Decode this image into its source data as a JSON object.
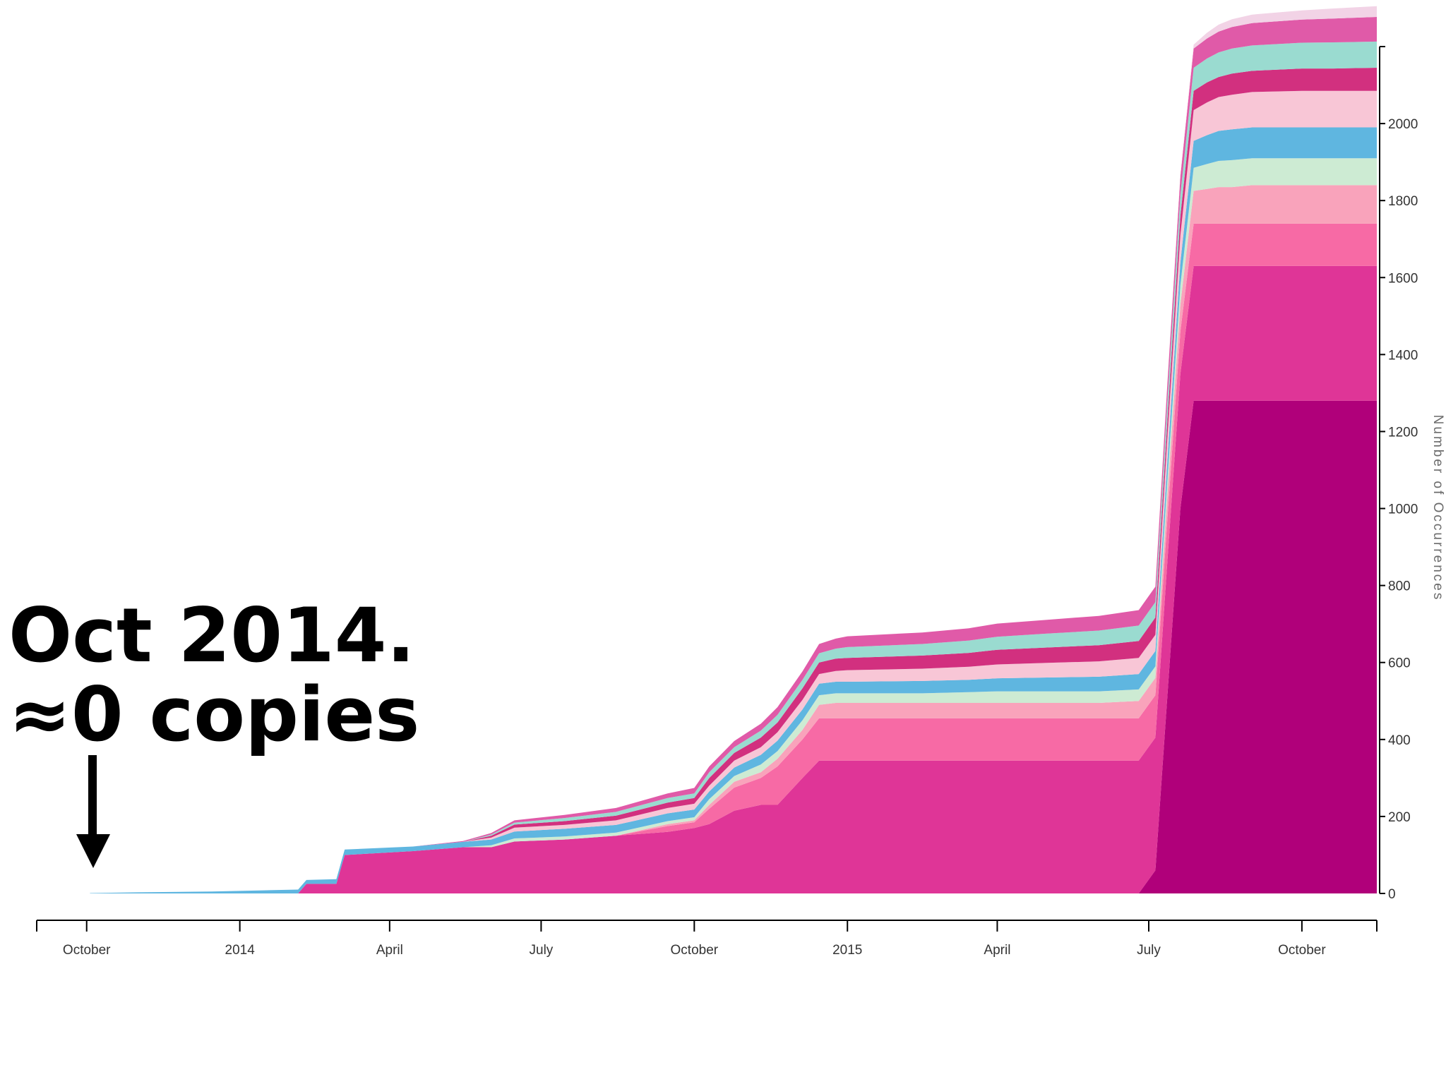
{
  "annotation": {
    "line1": "Oct 2014.",
    "line2": "≈0 copies"
  },
  "chart_data": {
    "type": "area",
    "stacked": true,
    "ylabel": "Number of Occurrences",
    "xlabel": "",
    "ylim": [
      0,
      2200
    ],
    "yticks": [
      0,
      200,
      400,
      600,
      800,
      1000,
      1200,
      1400,
      1600,
      1800,
      2000
    ],
    "xlim": [
      "2013-09-01",
      "2015-11-15"
    ],
    "xticks": [
      {
        "label": "October",
        "date": "2013-10-01"
      },
      {
        "label": "2014",
        "date": "2014-01-01"
      },
      {
        "label": "April",
        "date": "2014-04-01"
      },
      {
        "label": "July",
        "date": "2014-07-01"
      },
      {
        "label": "October",
        "date": "2014-10-01"
      },
      {
        "label": "2015",
        "date": "2015-01-01"
      },
      {
        "label": "April",
        "date": "2015-04-01"
      },
      {
        "label": "July",
        "date": "2015-07-01"
      },
      {
        "label": "October",
        "date": "2015-10-01"
      }
    ],
    "grid": false,
    "y_axis_side": "right",
    "x": [
      "2013-10-03",
      "2013-11-01",
      "2013-12-15",
      "2014-01-15",
      "2014-02-05",
      "2014-02-10",
      "2014-02-28",
      "2014-03-05",
      "2014-04-15",
      "2014-05-15",
      "2014-06-01",
      "2014-06-15",
      "2014-07-15",
      "2014-08-15",
      "2014-09-15",
      "2014-10-01",
      "2014-10-10",
      "2014-10-25",
      "2014-11-10",
      "2014-11-20",
      "2014-12-05",
      "2014-12-15",
      "2014-12-25",
      "2015-01-01",
      "2015-02-15",
      "2015-03-15",
      "2015-04-01",
      "2015-05-01",
      "2015-06-01",
      "2015-06-25",
      "2015-07-05",
      "2015-07-08",
      "2015-07-12",
      "2015-07-20",
      "2015-07-28",
      "2015-08-05",
      "2015-08-12",
      "2015-08-20",
      "2015-09-01",
      "2015-10-01",
      "2015-10-20",
      "2015-11-15"
    ],
    "series": [
      {
        "color": "#b0007a",
        "values": [
          0,
          0,
          0,
          0,
          0,
          0,
          0,
          0,
          0,
          0,
          0,
          0,
          0,
          0,
          0,
          0,
          0,
          0,
          0,
          0,
          0,
          0,
          0,
          0,
          0,
          0,
          0,
          0,
          0,
          0,
          60,
          250,
          500,
          1000,
          1280,
          1280,
          1280,
          1280,
          1280,
          1280,
          1280,
          1280
        ]
      },
      {
        "color": "#df3597",
        "values": [
          0,
          0,
          0,
          0,
          0,
          25,
          25,
          100,
          110,
          120,
          120,
          135,
          140,
          150,
          160,
          170,
          180,
          215,
          230,
          230,
          300,
          345,
          345,
          345,
          345,
          345,
          345,
          345,
          345,
          345,
          345,
          345,
          350,
          350,
          350,
          350,
          350,
          350,
          350,
          350,
          350,
          350
        ]
      },
      {
        "color": "#f76aa5",
        "values": [
          0,
          0,
          0,
          0,
          0,
          0,
          0,
          0,
          0,
          0,
          0,
          0,
          0,
          0,
          15,
          15,
          40,
          60,
          70,
          100,
          100,
          110,
          110,
          110,
          110,
          110,
          110,
          110,
          110,
          110,
          110,
          110,
          110,
          110,
          110,
          110,
          110,
          110,
          110,
          110,
          110,
          110
        ]
      },
      {
        "color": "#f9a3bb",
        "values": [
          0,
          0,
          0,
          0,
          0,
          0,
          0,
          0,
          0,
          0,
          0,
          0,
          0,
          0,
          5,
          5,
          10,
          15,
          15,
          20,
          25,
          35,
          40,
          40,
          40,
          40,
          40,
          40,
          40,
          45,
          45,
          50,
          60,
          70,
          85,
          90,
          95,
          95,
          100,
          100,
          100,
          100
        ]
      },
      {
        "color": "#cdebd3",
        "values": [
          0,
          0,
          0,
          0,
          0,
          0,
          0,
          0,
          0,
          0,
          5,
          8,
          8,
          8,
          8,
          8,
          15,
          15,
          20,
          20,
          25,
          25,
          25,
          25,
          25,
          28,
          30,
          30,
          30,
          30,
          30,
          35,
          40,
          50,
          60,
          65,
          68,
          70,
          70,
          70,
          70,
          70
        ]
      },
      {
        "color": "#5fb6e0",
        "values": [
          1,
          3,
          5,
          8,
          10,
          10,
          12,
          14,
          12,
          14,
          15,
          18,
          20,
          20,
          20,
          20,
          20,
          22,
          25,
          27,
          28,
          30,
          30,
          30,
          32,
          32,
          34,
          36,
          38,
          40,
          40,
          45,
          50,
          60,
          70,
          75,
          78,
          80,
          80,
          80,
          80,
          80
        ]
      },
      {
        "color": "#f8c6d6",
        "values": [
          0,
          0,
          0,
          0,
          0,
          0,
          0,
          0,
          0,
          0,
          5,
          10,
          10,
          12,
          14,
          15,
          15,
          18,
          20,
          22,
          25,
          25,
          28,
          30,
          32,
          34,
          36,
          38,
          40,
          42,
          42,
          50,
          60,
          70,
          80,
          85,
          88,
          90,
          92,
          95,
          95,
          95
        ]
      },
      {
        "color": "#d2307f",
        "values": [
          0,
          0,
          0,
          0,
          0,
          0,
          0,
          0,
          0,
          0,
          5,
          8,
          10,
          12,
          14,
          15,
          20,
          20,
          25,
          25,
          30,
          30,
          32,
          32,
          34,
          36,
          38,
          40,
          42,
          44,
          45,
          45,
          45,
          50,
          50,
          52,
          52,
          55,
          55,
          58,
          58,
          60
        ]
      },
      {
        "color": "#9adbd0",
        "values": [
          0,
          0,
          0,
          0,
          0,
          0,
          0,
          0,
          0,
          0,
          3,
          5,
          8,
          10,
          12,
          12,
          15,
          15,
          18,
          20,
          22,
          24,
          26,
          28,
          30,
          32,
          34,
          36,
          38,
          40,
          40,
          45,
          50,
          55,
          60,
          62,
          64,
          65,
          66,
          67,
          68,
          68
        ]
      },
      {
        "color": "#e05aa8",
        "values": [
          0,
          0,
          0,
          0,
          0,
          0,
          0,
          0,
          0,
          2,
          4,
          6,
          8,
          10,
          12,
          14,
          15,
          16,
          18,
          20,
          22,
          24,
          26,
          28,
          30,
          32,
          34,
          36,
          38,
          40,
          40,
          42,
          45,
          48,
          50,
          52,
          54,
          56,
          58,
          60,
          62,
          64
        ]
      },
      {
        "color": "#f2d3e6",
        "values": [
          0,
          0,
          0,
          0,
          0,
          0,
          0,
          0,
          0,
          0,
          0,
          0,
          0,
          0,
          0,
          0,
          0,
          0,
          0,
          0,
          0,
          0,
          0,
          0,
          0,
          0,
          0,
          0,
          0,
          0,
          0,
          0,
          0,
          5,
          10,
          15,
          18,
          20,
          22,
          24,
          26,
          28
        ]
      }
    ]
  }
}
